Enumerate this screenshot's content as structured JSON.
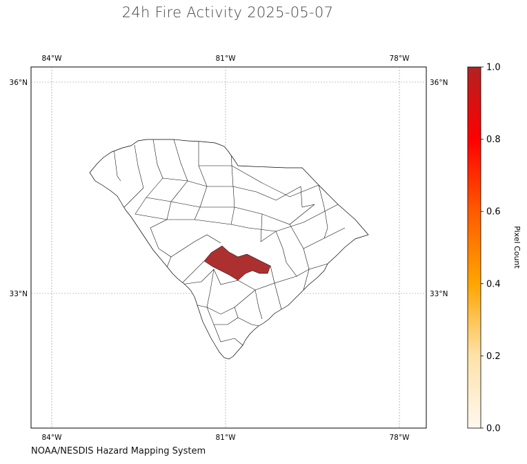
{
  "title": "24h Fire Activity 2025-05-07",
  "credit": "NOAA/NESDIS Hazard Mapping System",
  "map": {
    "lon_ticks": [
      "84°W",
      "81°W",
      "78°W"
    ],
    "lat_ticks": [
      "36°N",
      "33°N"
    ],
    "lon_values": [
      -84,
      -81,
      -78
    ],
    "lat_values": [
      36,
      33
    ],
    "extent": {
      "lon_min": -84.35,
      "lon_max": -77.5,
      "lat_min": 31.1,
      "lat_max": 36.2
    },
    "gridlines": true,
    "state": "South Carolina",
    "highlighted_county_value": 1.0,
    "other_counties_value": 0.0
  },
  "colorbar": {
    "label": "Pixel Count",
    "ticks": [
      "0.0",
      "0.2",
      "0.4",
      "0.6",
      "0.8",
      "1.0"
    ],
    "min": 0.0,
    "max": 1.0,
    "colormap": [
      "#fff8ef",
      "#fde2a8",
      "#ffa500",
      "#ff5a00",
      "#ff0000",
      "#b22222"
    ]
  },
  "colors": {
    "fill_high": "#ac3030",
    "grid": "#888888"
  }
}
